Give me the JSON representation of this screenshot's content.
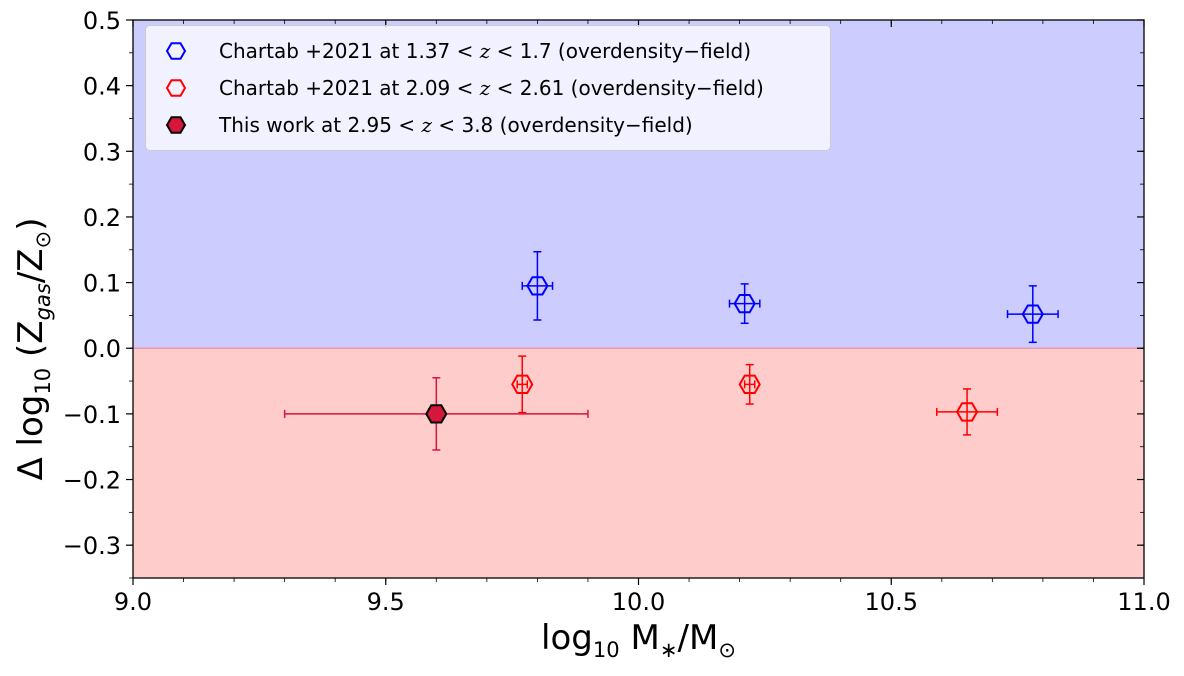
{
  "chart_data": {
    "type": "scatter",
    "xlabel_base": "log",
    "xlabel_sub": "10",
    "xlabel_rest": " M",
    "xlabel_sub2": "∗",
    "xlabel_rest2": "/M",
    "xlabel_sub3": "⊙",
    "ylabel_pre": "Δ log",
    "ylabel_sub": "10",
    "ylabel_mid": " (Z",
    "ylabel_sub2": "gas",
    "ylabel_mid2": "/Z",
    "ylabel_sub3": "⊙",
    "ylabel_end": ")",
    "xlim": [
      9.0,
      11.0
    ],
    "ylim": [
      -0.35,
      0.5
    ],
    "xticks": [
      "9.0",
      "9.5",
      "10.0",
      "10.5",
      "11.0"
    ],
    "xtick_values": [
      9.0,
      9.5,
      10.0,
      10.5,
      11.0
    ],
    "yticks": [
      "−0.3",
      "−0.2",
      "−0.1",
      "0.0",
      "0.1",
      "0.2",
      "0.3",
      "0.4",
      "0.5"
    ],
    "ytick_values": [
      -0.3,
      -0.2,
      -0.1,
      0.0,
      0.1,
      0.2,
      0.3,
      0.4,
      0.5
    ],
    "background_regions": [
      {
        "y_from": 0.0,
        "y_to": 0.5,
        "color": "#ccccff"
      },
      {
        "y_from": -0.35,
        "y_to": 0.0,
        "color": "#ffcccc"
      }
    ],
    "legend_position": "upper-left",
    "series": [
      {
        "label_a": "Chartab +2021 at 1.37 < ",
        "label_z": "z",
        "label_b": " < 1.7 (overdensity−field)",
        "color": "#0000ff",
        "filled": false,
        "points": [
          {
            "x": 9.8,
            "y": 0.095,
            "xerr": 0.03,
            "yerr": 0.052
          },
          {
            "x": 10.21,
            "y": 0.068,
            "xerr": 0.03,
            "yerr": 0.03
          },
          {
            "x": 10.78,
            "y": 0.052,
            "xerr": 0.05,
            "yerr": 0.043
          }
        ]
      },
      {
        "label_a": "Chartab +2021 at 2.09 < ",
        "label_z": "z",
        "label_b": " < 2.61 (overdensity−field)",
        "color": "#ff0000",
        "filled": false,
        "points": [
          {
            "x": 9.77,
            "y": -0.055,
            "xerr": 0.01,
            "yerr": 0.043
          },
          {
            "x": 10.22,
            "y": -0.055,
            "xerr": 0.01,
            "yerr": 0.03
          },
          {
            "x": 10.65,
            "y": -0.097,
            "xerr": 0.06,
            "yerr": 0.035
          }
        ]
      },
      {
        "label_a": "This work at 2.95 < ",
        "label_z": "z",
        "label_b": " < 3.8 (overdensity−field)",
        "color": "#d6163a",
        "filled": true,
        "points": [
          {
            "x": 9.6,
            "y": -0.1,
            "xerr": 0.3,
            "yerr": 0.055
          }
        ]
      }
    ]
  }
}
